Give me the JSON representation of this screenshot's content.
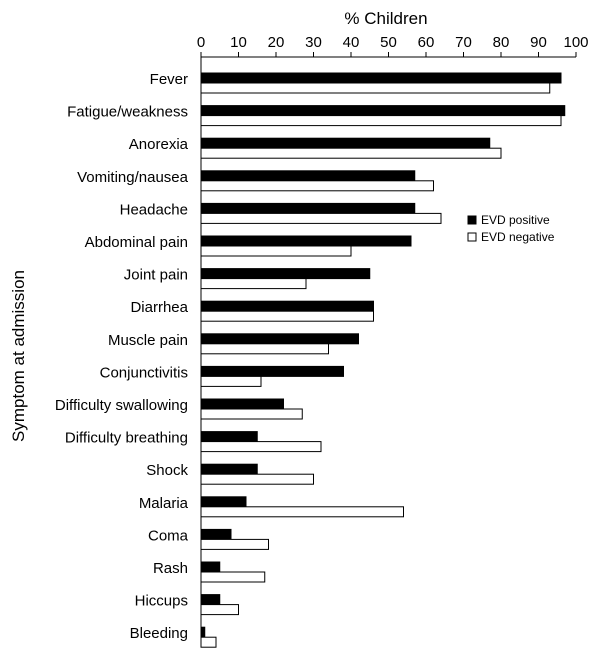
{
  "chart_data": {
    "type": "bar",
    "orientation": "horizontal",
    "xlabel": "% Children",
    "ylabel": "Symptom at admission",
    "xlim": [
      0,
      100
    ],
    "xticks": [
      "0",
      "10",
      "20",
      "30",
      "40",
      "50",
      "60",
      "70",
      "80",
      "90",
      "100"
    ],
    "x_axis_position": "top",
    "grid": false,
    "legend_position": "right",
    "categories": [
      "Fever",
      "Fatigue/weakness",
      "Anorexia",
      "Vomiting/nausea",
      "Headache",
      "Abdominal pain",
      "Joint pain",
      "Diarrhea",
      "Muscle pain",
      "Conjunctivitis",
      "Difficulty swallowing",
      "Difficulty breathing",
      "Shock",
      "Malaria",
      "Coma",
      "Rash",
      "Hiccups",
      "Bleeding"
    ],
    "series": [
      {
        "name": "EVD positive",
        "color": "#000000",
        "values": [
          96,
          97,
          77,
          57,
          57,
          56,
          45,
          46,
          42,
          38,
          22,
          15,
          15,
          12,
          8,
          5,
          5,
          1
        ]
      },
      {
        "name": "EVD negative",
        "color": "#ffffff",
        "values": [
          93,
          96,
          80,
          62,
          64,
          40,
          28,
          46,
          34,
          16,
          27,
          32,
          30,
          54,
          18,
          17,
          10,
          4
        ]
      }
    ]
  }
}
